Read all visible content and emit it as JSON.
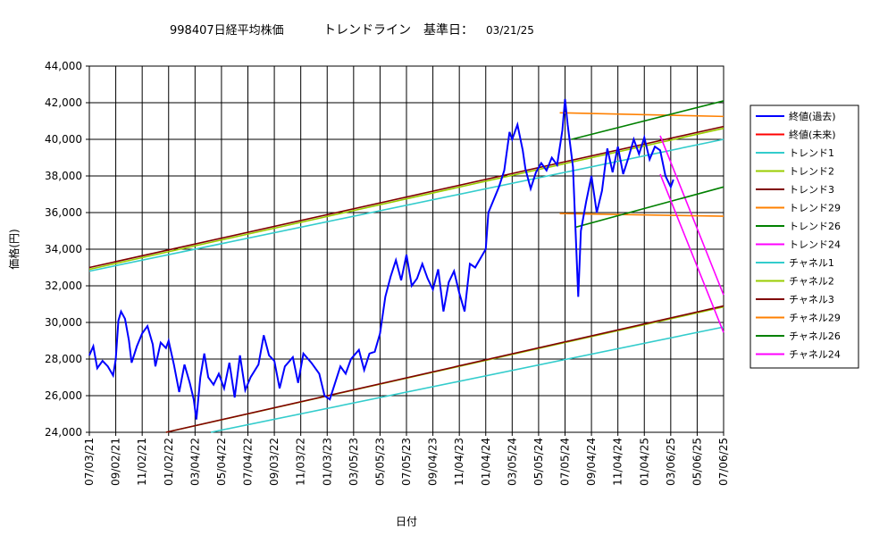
{
  "chart_data": {
    "type": "line",
    "title": "998407日経平均株価",
    "subtitle": "トレンドライン　基準日：",
    "base_date": "03/21/25",
    "xlabel": "日付",
    "ylabel": "価格(円)",
    "xlim": [
      0,
      24
    ],
    "ylim": [
      24000,
      44000
    ],
    "xticks": [
      {
        "value": 0,
        "label": "07/03/21"
      },
      {
        "value": 1,
        "label": "09/02/21"
      },
      {
        "value": 2,
        "label": "11/02/21"
      },
      {
        "value": 3,
        "label": "01/02/22"
      },
      {
        "value": 4,
        "label": "03/04/22"
      },
      {
        "value": 5,
        "label": "05/04/22"
      },
      {
        "value": 6,
        "label": "07/04/22"
      },
      {
        "value": 7,
        "label": "09/03/22"
      },
      {
        "value": 8,
        "label": "11/03/22"
      },
      {
        "value": 9,
        "label": "01/03/23"
      },
      {
        "value": 10,
        "label": "03/05/23"
      },
      {
        "value": 11,
        "label": "05/05/23"
      },
      {
        "value": 12,
        "label": "07/05/23"
      },
      {
        "value": 13,
        "label": "09/04/23"
      },
      {
        "value": 14,
        "label": "11/04/23"
      },
      {
        "value": 15,
        "label": "01/04/24"
      },
      {
        "value": 16,
        "label": "03/05/24"
      },
      {
        "value": 17,
        "label": "05/05/24"
      },
      {
        "value": 18,
        "label": "07/05/24"
      },
      {
        "value": 19,
        "label": "09/04/24"
      },
      {
        "value": 20,
        "label": "11/04/24"
      },
      {
        "value": 21,
        "label": "01/04/25"
      },
      {
        "value": 22,
        "label": "03/06/25"
      },
      {
        "value": 23,
        "label": "05/06/25"
      },
      {
        "value": 24,
        "label": "07/06/25"
      }
    ],
    "yticks": [
      {
        "value": 24000,
        "label": "24,000"
      },
      {
        "value": 26000,
        "label": "26,000"
      },
      {
        "value": 28000,
        "label": "28,000"
      },
      {
        "value": 30000,
        "label": "30,000"
      },
      {
        "value": 32000,
        "label": "32,000"
      },
      {
        "value": 34000,
        "label": "34,000"
      },
      {
        "value": 36000,
        "label": "36,000"
      },
      {
        "value": 38000,
        "label": "38,000"
      },
      {
        "value": 40000,
        "label": "40,000"
      },
      {
        "value": 42000,
        "label": "42,000"
      },
      {
        "value": 44000,
        "label": "44,000"
      }
    ],
    "grid": true,
    "series": [
      {
        "name": "終値(過去)",
        "color": "#0000ff",
        "x": [
          0,
          0.15,
          0.3,
          0.5,
          0.7,
          0.9,
          1.0,
          1.1,
          1.2,
          1.35,
          1.5,
          1.6,
          1.8,
          2.0,
          2.2,
          2.4,
          2.5,
          2.7,
          2.9,
          3.0,
          3.2,
          3.4,
          3.6,
          3.8,
          3.95,
          4.05,
          4.2,
          4.35,
          4.5,
          4.7,
          4.9,
          5.1,
          5.3,
          5.5,
          5.7,
          5.9,
          6.1,
          6.4,
          6.6,
          6.8,
          7.0,
          7.2,
          7.4,
          7.7,
          7.9,
          8.1,
          8.4,
          8.7,
          8.9,
          9.1,
          9.3,
          9.5,
          9.7,
          9.9,
          10.2,
          10.4,
          10.6,
          10.8,
          11.0,
          11.2,
          11.4,
          11.6,
          11.8,
          12.0,
          12.2,
          12.4,
          12.6,
          12.8,
          13.0,
          13.2,
          13.4,
          13.6,
          13.8,
          14.0,
          14.2,
          14.4,
          14.6,
          14.8,
          15.0,
          15.1,
          15.3,
          15.5,
          15.7,
          15.9,
          16.0,
          16.2,
          16.4,
          16.5,
          16.7,
          16.9,
          17.1,
          17.3,
          17.5,
          17.7,
          17.9,
          18.0,
          18.1,
          18.3,
          18.5,
          18.6,
          18.8,
          19.0,
          19.2,
          19.4,
          19.6,
          19.8,
          20.0,
          20.2,
          20.4,
          20.6,
          20.8,
          21.0,
          21.2,
          21.4,
          21.6,
          21.8,
          22.0,
          22.1
        ],
        "values": [
          28200,
          28700,
          27500,
          27900,
          27600,
          27100,
          28000,
          30100,
          30600,
          30200,
          29000,
          27800,
          28700,
          29400,
          29800,
          28800,
          27600,
          28900,
          28600,
          29000,
          27700,
          26200,
          27700,
          26700,
          25800,
          24700,
          27000,
          28300,
          27000,
          26600,
          27200,
          26400,
          27800,
          25900,
          28200,
          26300,
          27000,
          27700,
          29300,
          28200,
          27900,
          26400,
          27600,
          28100,
          26700,
          28300,
          27800,
          27200,
          26000,
          25800,
          26700,
          27600,
          27200,
          28000,
          28500,
          27400,
          28300,
          28400,
          29400,
          31400,
          32500,
          33400,
          32300,
          33700,
          32000,
          32400,
          33200,
          32400,
          31800,
          32900,
          30600,
          32200,
          32800,
          31600,
          30600,
          33200,
          33000,
          33500,
          34000,
          36000,
          36700,
          37400,
          38300,
          40400,
          40000,
          40800,
          39400,
          38400,
          37300,
          38200,
          38700,
          38300,
          39000,
          38600,
          40500,
          42200,
          40800,
          38500,
          31400,
          35000,
          36600,
          38000,
          36000,
          37200,
          39500,
          38200,
          39600,
          38100,
          39000,
          40000,
          39200,
          40100,
          38900,
          39600,
          39400,
          38000,
          37400,
          37800
        ]
      },
      {
        "name": "終値(未来)",
        "color": "#ff0000",
        "x": [],
        "values": []
      },
      {
        "name": "トレンド1",
        "color": "#33cccc",
        "x": [
          0,
          24
        ],
        "values": [
          32800,
          40000
        ]
      },
      {
        "name": "トレンド2",
        "color": "#99cc00",
        "x": [
          0,
          24
        ],
        "values": [
          32900,
          40600
        ]
      },
      {
        "name": "トレンド3",
        "color": "#800000",
        "x": [
          0,
          24
        ],
        "values": [
          33000,
          40700
        ]
      },
      {
        "name": "トレンド29",
        "color": "#ff8000",
        "x": [
          17.8,
          24
        ],
        "values": [
          41450,
          41250
        ]
      },
      {
        "name": "トレンド26",
        "color": "#008000",
        "x": [
          18.25,
          24
        ],
        "values": [
          40000,
          42100
        ]
      },
      {
        "name": "トレンド24",
        "color": "#ff00ff",
        "x": [
          21.6,
          24
        ],
        "values": [
          40200,
          31500
        ]
      },
      {
        "name": "チャネル1",
        "color": "#33cccc",
        "x": [
          4.6,
          24
        ],
        "values": [
          24000,
          29750
        ]
      },
      {
        "name": "チャネル2",
        "color": "#99cc00",
        "x": [
          2.9,
          24
        ],
        "values": [
          24000,
          30850
        ]
      },
      {
        "name": "チャネル3",
        "color": "#800000",
        "x": [
          2.9,
          24
        ],
        "values": [
          24000,
          30900
        ]
      },
      {
        "name": "チャネル29",
        "color": "#ff8000",
        "x": [
          17.8,
          24
        ],
        "values": [
          35950,
          35800
        ]
      },
      {
        "name": "チャネル26",
        "color": "#008000",
        "x": [
          18.4,
          24
        ],
        "values": [
          35200,
          37400
        ]
      },
      {
        "name": "チャネル24",
        "color": "#ff00ff",
        "x": [
          21.6,
          24
        ],
        "values": [
          38100,
          29450
        ]
      }
    ]
  }
}
